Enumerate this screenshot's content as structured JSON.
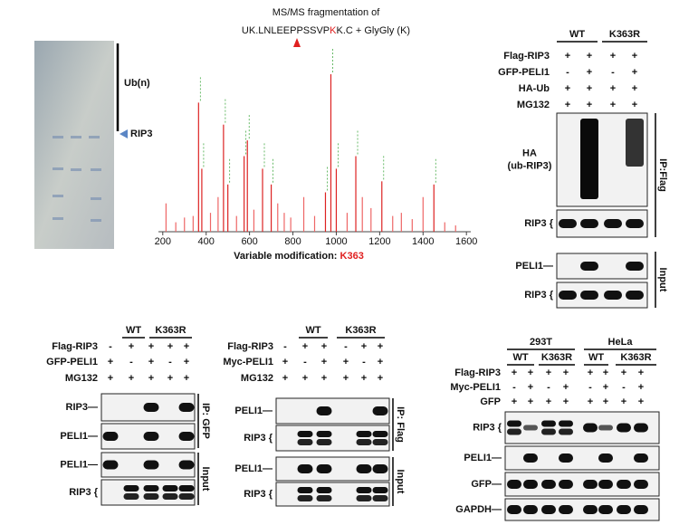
{
  "panel_a": {
    "ub_label": "Ub(n)",
    "band_label": "RIP3"
  },
  "spectrum": {
    "title": "MS/MS fragmentation of",
    "sequence": {
      "pre": "UK.LNLEEPPSSVP",
      "mod": "K",
      "post": "K.C + GlyGly (K)"
    },
    "xlim": [
      180,
      1620
    ],
    "xticks": [
      200,
      400,
      600,
      800,
      1000,
      1200,
      1400,
      1600
    ],
    "ylim": [
      0,
      100
    ],
    "peaks": {
      "x": [
        215,
        260,
        300,
        340,
        365,
        380,
        420,
        455,
        480,
        500,
        540,
        575,
        590,
        620,
        660,
        700,
        730,
        760,
        790,
        850,
        900,
        950,
        975,
        1000,
        1050,
        1090,
        1120,
        1160,
        1210,
        1260,
        1300,
        1350,
        1400,
        1450,
        1500,
        1550
      ],
      "values": [
        18,
        6,
        9,
        10,
        82,
        40,
        12,
        22,
        68,
        30,
        10,
        48,
        58,
        14,
        40,
        30,
        18,
        12,
        9,
        22,
        10,
        25,
        100,
        40,
        12,
        48,
        22,
        15,
        32,
        10,
        12,
        8,
        22,
        30,
        6,
        4
      ]
    },
    "caption": {
      "text": "Variable modification:",
      "site": "K363"
    }
  },
  "blot_top": {
    "groups": [
      "WT",
      "K363R"
    ],
    "rows": [
      {
        "label": "Flag-RIP3",
        "signs": [
          "+",
          "+",
          "+",
          "+"
        ]
      },
      {
        "label": "GFP-PELI1",
        "signs": [
          "-",
          "+",
          "-",
          "+"
        ]
      },
      {
        "label": "HA-Ub",
        "signs": [
          "+",
          "+",
          "+",
          "+"
        ]
      },
      {
        "label": "MG132",
        "signs": [
          "+",
          "+",
          "+",
          "+"
        ]
      }
    ],
    "blots": [
      {
        "label": [
          "HA",
          "(ub-RIP3)"
        ]
      },
      {
        "label": [
          "RIP3 {"
        ]
      },
      {
        "label": [
          "PELI1—"
        ]
      },
      {
        "label": [
          "RIP3 {"
        ]
      }
    ],
    "sections": [
      "IP:Flag",
      "Input"
    ]
  },
  "blot_left": {
    "groups": [
      "WT",
      "K363R"
    ],
    "rows": [
      {
        "label": "Flag-RIP3",
        "signs": [
          "-",
          "+",
          "+",
          "+",
          "+"
        ]
      },
      {
        "label": "GFP-PELI1",
        "signs": [
          "+",
          "-",
          "+",
          "-",
          "+"
        ]
      },
      {
        "label": "MG132",
        "signs": [
          "+",
          "+",
          "+",
          "+",
          "+"
        ]
      }
    ],
    "blots": [
      {
        "label": [
          "RIP3—"
        ]
      },
      {
        "label": [
          "PELI1—"
        ]
      },
      {
        "label": [
          "PELI1—"
        ]
      },
      {
        "label": [
          "RIP3 {"
        ]
      }
    ],
    "sections": [
      "IP: GFP",
      "Input"
    ]
  },
  "blot_mid": {
    "groups": [
      "WT",
      "K363R"
    ],
    "rows": [
      {
        "label": "Flag-RIP3",
        "signs": [
          "-",
          "+",
          "+",
          "-",
          "+",
          "+"
        ]
      },
      {
        "label": "Myc-PELI1",
        "signs": [
          "+",
          "-",
          "+",
          "+",
          "-",
          "+"
        ]
      },
      {
        "label": "MG132",
        "signs": [
          "+",
          "+",
          "+",
          "+",
          "+",
          "+"
        ]
      }
    ],
    "blots": [
      {
        "label": [
          "PELI1—"
        ]
      },
      {
        "label": [
          "RIP3 {"
        ]
      },
      {
        "label": [
          "PELI1—"
        ]
      },
      {
        "label": [
          "RIP3 {"
        ]
      }
    ],
    "sections": [
      "IP: Flag",
      "Input"
    ]
  },
  "blot_right": {
    "cells": [
      "293T",
      "HeLa"
    ],
    "groups": [
      "WT",
      "K363R",
      "WT",
      "K363R"
    ],
    "rows": [
      {
        "label": "Flag-RIP3",
        "signs": [
          "+",
          "+",
          "+",
          "+",
          "+",
          "+",
          "+",
          "+"
        ]
      },
      {
        "label": "Myc-PELI1",
        "signs": [
          "-",
          "+",
          "-",
          "+",
          "-",
          "+",
          "-",
          "+"
        ]
      },
      {
        "label": "GFP",
        "signs": [
          "+",
          "+",
          "+",
          "+",
          "+",
          "+",
          "+",
          "+"
        ]
      }
    ],
    "blots": [
      {
        "label": [
          "RIP3 {"
        ]
      },
      {
        "label": [
          "PELI1—"
        ]
      },
      {
        "label": [
          "GFP—"
        ]
      },
      {
        "label": [
          "GAPDH—"
        ]
      }
    ]
  }
}
